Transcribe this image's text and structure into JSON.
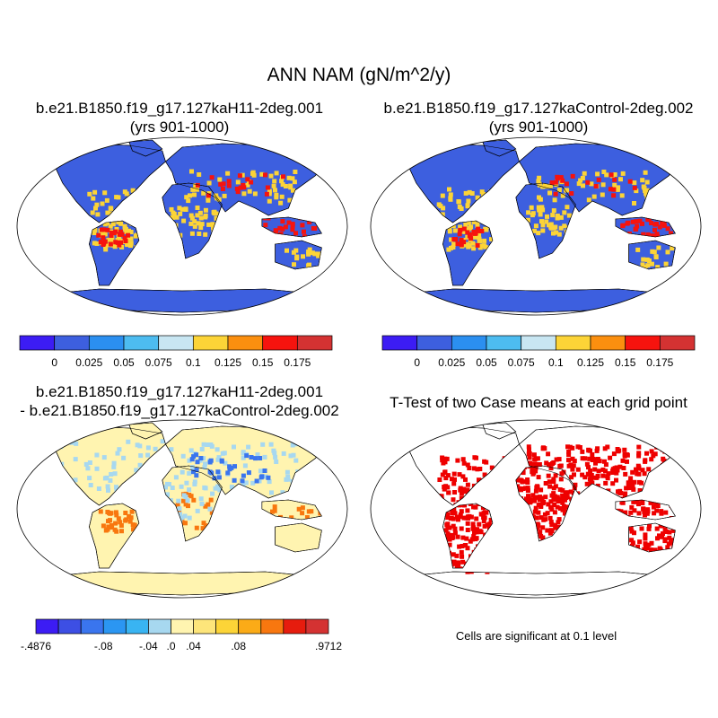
{
  "title": "ANN NAM (gN/m^2/y)",
  "panels": {
    "case1": {
      "line1": "b.e21.B1850.f19_g17.127kaH11-2deg.001",
      "line2": "(yrs 901-1000)"
    },
    "case2": {
      "line1": "b.e21.B1850.f19_g17.127kaControl-2deg.002",
      "line2": "(yrs 901-1000)"
    },
    "diff": {
      "line1": "b.e21.B1850.f19_g17.127kaH11-2deg.001",
      "line2": "- b.e21.B1850.f19_g17.127kaControl-2deg.002"
    },
    "ttest": {
      "line1": "T-Test of two Case means at each grid point"
    }
  },
  "significance_note": "Cells are significant at 0.1 level",
  "colorbars": {
    "case": {
      "colors": [
        "#3c1cf4",
        "#3d5fdf",
        "#2b8ff0",
        "#4dbcf0",
        "#c8e6f2",
        "#fcd437",
        "#fb8f0f",
        "#f6130e",
        "#d43232"
      ],
      "labels": [
        "0",
        "0.025",
        "0.05",
        "0.075",
        "0.1",
        "0.125",
        "0.15",
        "0.175"
      ]
    },
    "diff": {
      "colors": [
        "#3c1cf4",
        "#3d4fe4",
        "#3a75ee",
        "#2b96f2",
        "#39b4f2",
        "#a7d8f0",
        "#fff4b0",
        "#fde57a",
        "#fcd437",
        "#fbab17",
        "#f8770f",
        "#e61c0e",
        "#d43232"
      ],
      "labels": [
        "-.4876",
        "-.08",
        "-.04",
        ".0",
        ".04",
        ".08",
        ".9712"
      ]
    }
  },
  "map_fills": {
    "case_land": "#3d5fdf",
    "case_antarctica": "#3d5fdf",
    "case_tropics": "#fcd437",
    "case_hot": "#f6130e",
    "diff_land": "#fff4b0",
    "diff_light": "#a7d8f0",
    "diff_neg": "#3a75ee",
    "diff_pos": "#f8770f",
    "sig": "#ee0000"
  }
}
